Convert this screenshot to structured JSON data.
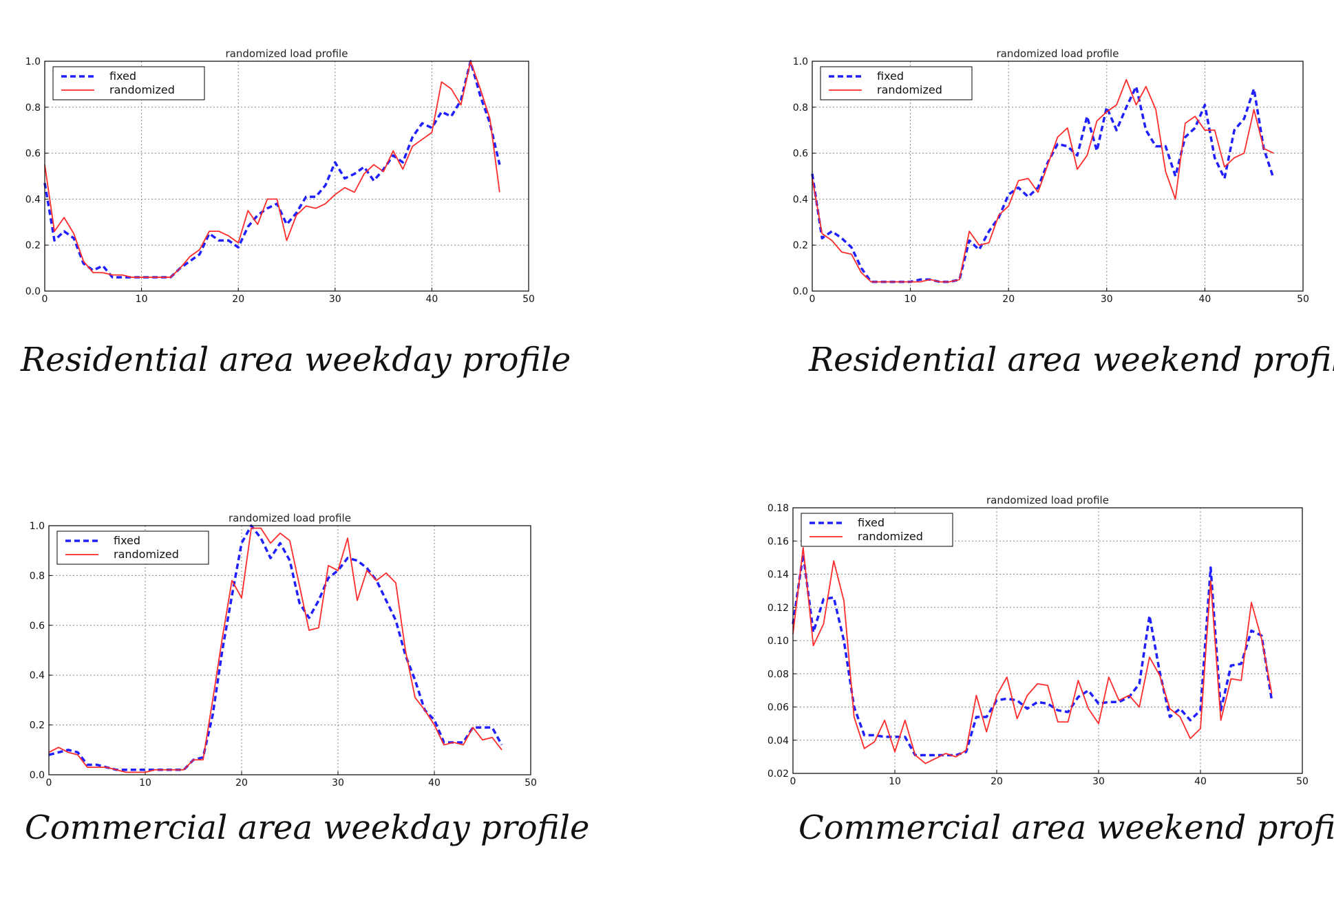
{
  "chart_data": [
    {
      "type": "line",
      "title": "randomized load profile",
      "caption": "Residential area weekday profile",
      "xlim": [
        0,
        50
      ],
      "ylim": [
        0.0,
        1.0
      ],
      "x_ticks": [
        "0",
        "10",
        "20",
        "30",
        "40",
        "50"
      ],
      "y_ticks": [
        "0.0",
        "0.2",
        "0.4",
        "0.6",
        "0.8",
        "1.0"
      ],
      "grid": true,
      "legend_position": "top-left",
      "x": [
        0,
        1,
        2,
        3,
        4,
        5,
        6,
        7,
        8,
        9,
        10,
        11,
        12,
        13,
        14,
        15,
        16,
        17,
        18,
        19,
        20,
        21,
        22,
        23,
        24,
        25,
        26,
        27,
        28,
        29,
        30,
        31,
        32,
        33,
        34,
        35,
        36,
        37,
        38,
        39,
        40,
        41,
        42,
        43,
        44,
        45,
        46,
        47
      ],
      "series": [
        {
          "name": "fixed",
          "color": "#1f1fff",
          "style": "dashed",
          "values": [
            0.47,
            0.22,
            0.26,
            0.23,
            0.12,
            0.09,
            0.11,
            0.06,
            0.06,
            0.06,
            0.06,
            0.06,
            0.06,
            0.06,
            0.1,
            0.13,
            0.16,
            0.25,
            0.22,
            0.22,
            0.19,
            0.28,
            0.33,
            0.36,
            0.38,
            0.29,
            0.34,
            0.41,
            0.41,
            0.46,
            0.56,
            0.49,
            0.51,
            0.54,
            0.48,
            0.53,
            0.59,
            0.56,
            0.67,
            0.73,
            0.71,
            0.78,
            0.76,
            0.83,
            1.0,
            0.85,
            0.73,
            0.55
          ]
        },
        {
          "name": "randomized",
          "color": "#ff2a2a",
          "style": "solid",
          "values": [
            0.55,
            0.26,
            0.32,
            0.25,
            0.13,
            0.08,
            0.08,
            0.07,
            0.07,
            0.06,
            0.06,
            0.06,
            0.06,
            0.06,
            0.1,
            0.15,
            0.18,
            0.26,
            0.26,
            0.24,
            0.21,
            0.35,
            0.29,
            0.4,
            0.4,
            0.22,
            0.33,
            0.37,
            0.36,
            0.38,
            0.42,
            0.45,
            0.43,
            0.51,
            0.55,
            0.52,
            0.61,
            0.53,
            0.63,
            0.66,
            0.69,
            0.91,
            0.88,
            0.81,
            1.0,
            0.88,
            0.75,
            0.43
          ]
        }
      ]
    },
    {
      "type": "line",
      "title": "randomized load profile",
      "caption": "Residential area weekend profile",
      "xlim": [
        0,
        50
      ],
      "ylim": [
        0.0,
        1.0
      ],
      "x_ticks": [
        "0",
        "10",
        "20",
        "30",
        "40",
        "50"
      ],
      "y_ticks": [
        "0.0",
        "0.2",
        "0.4",
        "0.6",
        "0.8",
        "1.0"
      ],
      "grid": true,
      "legend_position": "top-left",
      "x": [
        0,
        1,
        2,
        3,
        4,
        5,
        6,
        7,
        8,
        9,
        10,
        11,
        12,
        13,
        14,
        15,
        16,
        17,
        18,
        19,
        20,
        21,
        22,
        23,
        24,
        25,
        26,
        27,
        28,
        29,
        30,
        31,
        32,
        33,
        34,
        35,
        36,
        37,
        38,
        39,
        40,
        41,
        42,
        43,
        44,
        45,
        46,
        47
      ],
      "series": [
        {
          "name": "fixed",
          "color": "#1f1fff",
          "style": "dashed",
          "values": [
            0.51,
            0.23,
            0.26,
            0.23,
            0.19,
            0.1,
            0.04,
            0.04,
            0.04,
            0.04,
            0.04,
            0.05,
            0.05,
            0.04,
            0.04,
            0.05,
            0.22,
            0.18,
            0.26,
            0.32,
            0.42,
            0.45,
            0.41,
            0.45,
            0.56,
            0.64,
            0.63,
            0.59,
            0.76,
            0.61,
            0.8,
            0.7,
            0.8,
            0.89,
            0.7,
            0.63,
            0.63,
            0.5,
            0.67,
            0.71,
            0.81,
            0.58,
            0.49,
            0.7,
            0.75,
            0.88,
            0.62,
            0.49
          ]
        },
        {
          "name": "randomized",
          "color": "#ff2a2a",
          "style": "solid",
          "values": [
            0.49,
            0.25,
            0.22,
            0.17,
            0.16,
            0.08,
            0.04,
            0.04,
            0.04,
            0.04,
            0.04,
            0.04,
            0.05,
            0.04,
            0.04,
            0.05,
            0.26,
            0.2,
            0.21,
            0.33,
            0.37,
            0.48,
            0.49,
            0.43,
            0.55,
            0.67,
            0.71,
            0.53,
            0.59,
            0.74,
            0.78,
            0.81,
            0.92,
            0.81,
            0.89,
            0.79,
            0.52,
            0.4,
            0.73,
            0.76,
            0.7,
            0.7,
            0.54,
            0.58,
            0.6,
            0.79,
            0.62,
            0.6
          ]
        }
      ]
    },
    {
      "type": "line",
      "title": "randomized load profile",
      "caption": "Commercial area weekday profile",
      "xlim": [
        0,
        50
      ],
      "ylim": [
        0.0,
        1.0
      ],
      "x_ticks": [
        "0",
        "10",
        "20",
        "30",
        "40",
        "50"
      ],
      "y_ticks": [
        "0.0",
        "0.2",
        "0.4",
        "0.6",
        "0.8",
        "1.0"
      ],
      "grid": true,
      "legend_position": "top-left",
      "x": [
        0,
        1,
        2,
        3,
        4,
        5,
        6,
        7,
        8,
        9,
        10,
        11,
        12,
        13,
        14,
        15,
        16,
        17,
        18,
        19,
        20,
        21,
        22,
        23,
        24,
        25,
        26,
        27,
        28,
        29,
        30,
        31,
        32,
        33,
        34,
        35,
        36,
        37,
        38,
        39,
        40,
        41,
        42,
        43,
        44,
        45,
        46,
        47
      ],
      "series": [
        {
          "name": "fixed",
          "color": "#1f1fff",
          "style": "dashed",
          "values": [
            0.08,
            0.09,
            0.1,
            0.09,
            0.04,
            0.04,
            0.03,
            0.02,
            0.02,
            0.02,
            0.02,
            0.02,
            0.02,
            0.02,
            0.02,
            0.06,
            0.07,
            0.24,
            0.5,
            0.72,
            0.93,
            1.0,
            0.95,
            0.87,
            0.93,
            0.86,
            0.69,
            0.63,
            0.7,
            0.79,
            0.82,
            0.87,
            0.86,
            0.83,
            0.78,
            0.7,
            0.62,
            0.48,
            0.38,
            0.26,
            0.22,
            0.13,
            0.13,
            0.13,
            0.19,
            0.19,
            0.19,
            0.12
          ]
        },
        {
          "name": "randomized",
          "color": "#ff2a2a",
          "style": "solid",
          "values": [
            0.09,
            0.11,
            0.09,
            0.08,
            0.03,
            0.03,
            0.03,
            0.02,
            0.01,
            0.01,
            0.01,
            0.02,
            0.02,
            0.02,
            0.02,
            0.06,
            0.06,
            0.3,
            0.55,
            0.78,
            0.71,
            0.99,
            0.99,
            0.93,
            0.97,
            0.94,
            0.76,
            0.58,
            0.59,
            0.84,
            0.82,
            0.95,
            0.7,
            0.82,
            0.78,
            0.81,
            0.77,
            0.5,
            0.31,
            0.26,
            0.2,
            0.12,
            0.13,
            0.12,
            0.19,
            0.14,
            0.15,
            0.1
          ]
        }
      ]
    },
    {
      "type": "line",
      "title": "randomized load profile",
      "caption": "Commercial area weekend profile",
      "xlim": [
        0,
        50
      ],
      "ylim": [
        0.02,
        0.18
      ],
      "x_ticks": [
        "0",
        "10",
        "20",
        "30",
        "40",
        "50"
      ],
      "y_ticks": [
        "0.02",
        "0.04",
        "0.06",
        "0.08",
        "0.10",
        "0.12",
        "0.14",
        "0.16",
        "0.18"
      ],
      "grid": true,
      "legend_position": "top-left",
      "x": [
        0,
        1,
        2,
        3,
        4,
        5,
        6,
        7,
        8,
        9,
        10,
        11,
        12,
        13,
        14,
        15,
        16,
        17,
        18,
        19,
        20,
        21,
        22,
        23,
        24,
        25,
        26,
        27,
        28,
        29,
        30,
        31,
        32,
        33,
        34,
        35,
        36,
        37,
        38,
        39,
        40,
        41,
        42,
        43,
        44,
        45,
        46,
        47
      ],
      "series": [
        {
          "name": "fixed",
          "color": "#1f1fff",
          "style": "dashed",
          "values": [
            0.11,
            0.152,
            0.105,
            0.125,
            0.126,
            0.1,
            0.06,
            0.043,
            0.043,
            0.042,
            0.042,
            0.042,
            0.031,
            0.031,
            0.031,
            0.031,
            0.031,
            0.033,
            0.054,
            0.054,
            0.064,
            0.065,
            0.064,
            0.059,
            0.063,
            0.062,
            0.058,
            0.057,
            0.066,
            0.07,
            0.062,
            0.063,
            0.063,
            0.066,
            0.074,
            0.115,
            0.081,
            0.054,
            0.059,
            0.052,
            0.058,
            0.144,
            0.058,
            0.085,
            0.086,
            0.106,
            0.103,
            0.064
          ]
        },
        {
          "name": "randomized",
          "color": "#ff2a2a",
          "style": "solid",
          "values": [
            0.104,
            0.156,
            0.097,
            0.11,
            0.148,
            0.124,
            0.054,
            0.035,
            0.039,
            0.052,
            0.033,
            0.052,
            0.031,
            0.026,
            0.029,
            0.032,
            0.03,
            0.034,
            0.067,
            0.045,
            0.067,
            0.078,
            0.053,
            0.067,
            0.074,
            0.073,
            0.051,
            0.051,
            0.076,
            0.059,
            0.05,
            0.078,
            0.064,
            0.067,
            0.06,
            0.09,
            0.079,
            0.059,
            0.054,
            0.041,
            0.047,
            0.136,
            0.052,
            0.077,
            0.076,
            0.123,
            0.101,
            0.068
          ]
        }
      ]
    }
  ]
}
